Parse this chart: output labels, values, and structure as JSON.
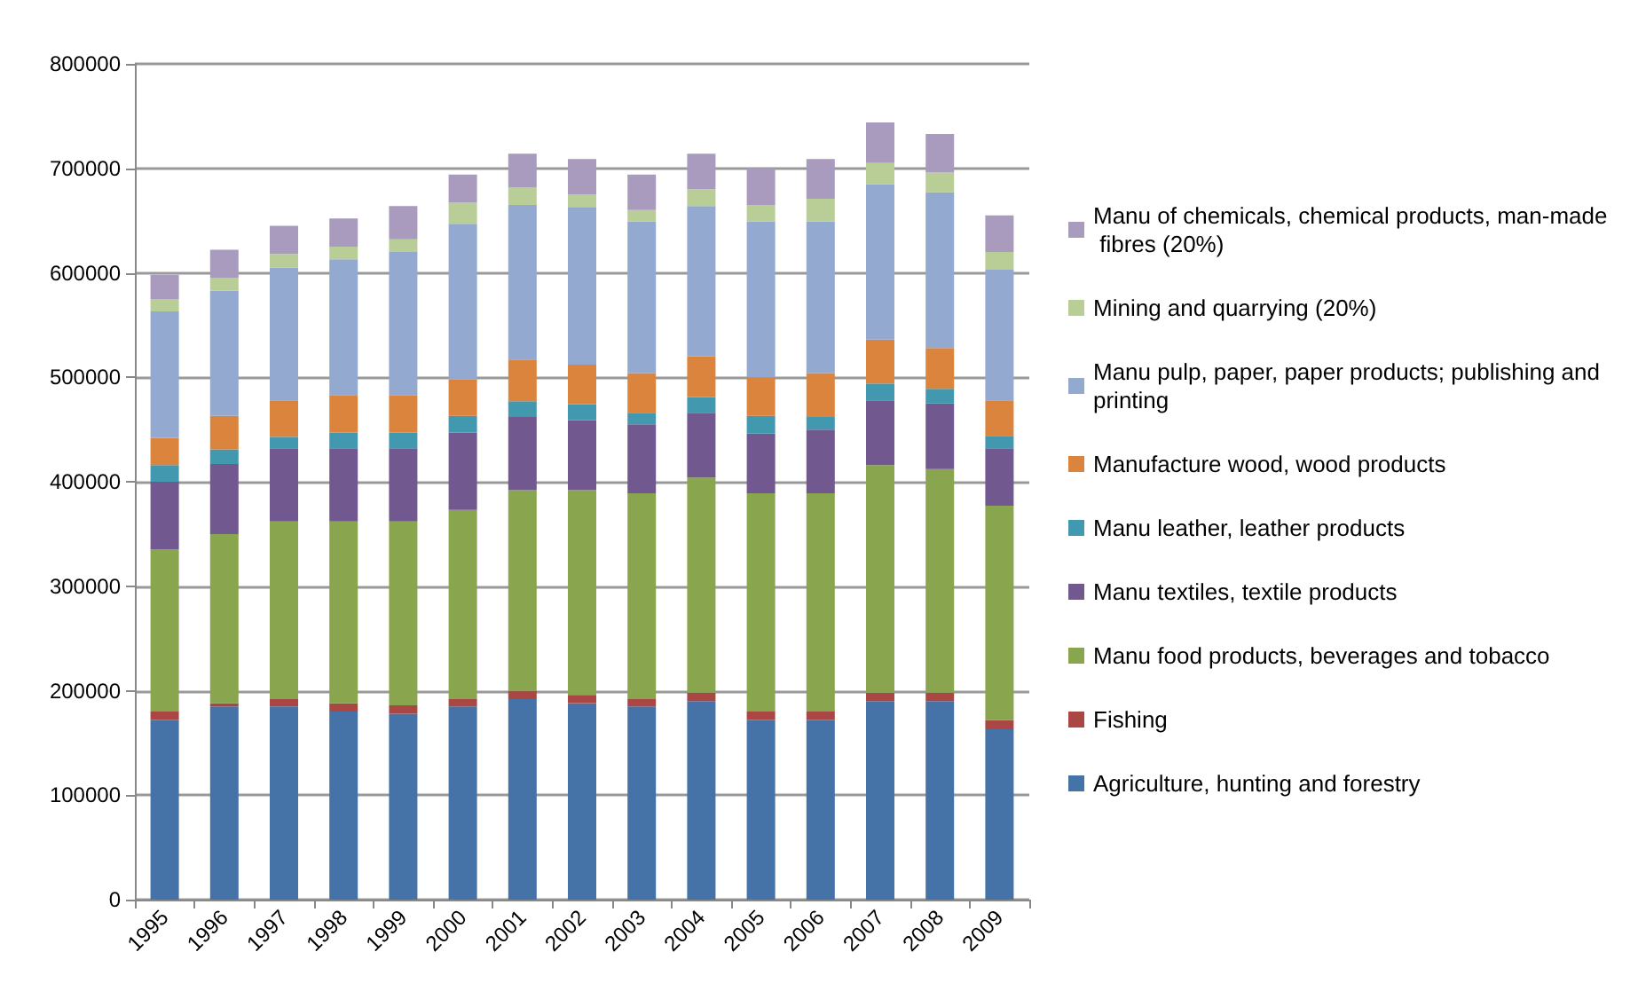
{
  "chart_data": {
    "type": "bar",
    "stacked": true,
    "categories": [
      "1995",
      "1996",
      "1997",
      "1998",
      "1999",
      "2000",
      "2001",
      "2002",
      "2003",
      "2004",
      "2005",
      "2006",
      "2007",
      "2008",
      "2009"
    ],
    "ylim": [
      0,
      800000
    ],
    "yticks": [
      0,
      100000,
      200000,
      300000,
      400000,
      500000,
      600000,
      700000,
      800000
    ],
    "grid": "y",
    "legend": "right",
    "series": [
      {
        "name": "Agriculture, hunting and forestry",
        "color": "#4572a7",
        "values": [
          172000,
          185000,
          185000,
          180000,
          178000,
          185000,
          192000,
          188000,
          185000,
          190000,
          172000,
          172000,
          190000,
          190000,
          163000
        ]
      },
      {
        "name": "Fishing",
        "color": "#aa4643",
        "values": [
          8000,
          3000,
          7000,
          8000,
          8000,
          7000,
          8000,
          8000,
          7000,
          8000,
          8000,
          8000,
          8000,
          8000,
          9000
        ]
      },
      {
        "name": "Manu food products, beverages and tobacco",
        "color": "#89a54e",
        "values": [
          155000,
          162000,
          170000,
          174000,
          176000,
          181000,
          192000,
          196000,
          197000,
          206000,
          209000,
          209000,
          218000,
          214000,
          205000
        ]
      },
      {
        "name": "Manu textiles, textile products",
        "color": "#71588f",
        "values": [
          65000,
          67000,
          70000,
          70000,
          70000,
          74000,
          70000,
          67000,
          66000,
          62000,
          57000,
          61000,
          62000,
          63000,
          55000
        ]
      },
      {
        "name": "Manu leather, leather products",
        "color": "#4198af",
        "values": [
          16000,
          14000,
          11000,
          15000,
          15000,
          16000,
          15000,
          15000,
          11000,
          15000,
          17000,
          12000,
          16000,
          14000,
          12000
        ]
      },
      {
        "name": "Manufacture wood, wood products",
        "color": "#db843d",
        "values": [
          26000,
          32000,
          35000,
          36000,
          36000,
          35000,
          40000,
          38000,
          38000,
          39000,
          37000,
          42000,
          42000,
          39000,
          34000
        ]
      },
      {
        "name": "Manu pulp, paper, paper products; publishing and printing",
        "color": "#93a9cf",
        "values": [
          121000,
          120000,
          127000,
          130000,
          137000,
          149000,
          148000,
          151000,
          145000,
          144000,
          149000,
          145000,
          149000,
          149000,
          125000
        ]
      },
      {
        "name": "Mining and quarrying (20%)",
        "color": "#b9cd96",
        "values": [
          12000,
          12000,
          13000,
          12000,
          12000,
          20000,
          17000,
          12000,
          11000,
          16000,
          16000,
          22000,
          20000,
          19000,
          17000
        ]
      },
      {
        "name": "Manu of chemicals, chemical products, man-made fibres (20%)",
        "color": "#a99bbd",
        "values": [
          23000,
          27000,
          27000,
          27000,
          32000,
          27000,
          32000,
          34000,
          34000,
          34000,
          35000,
          38000,
          39000,
          37000,
          35000
        ]
      }
    ]
  }
}
